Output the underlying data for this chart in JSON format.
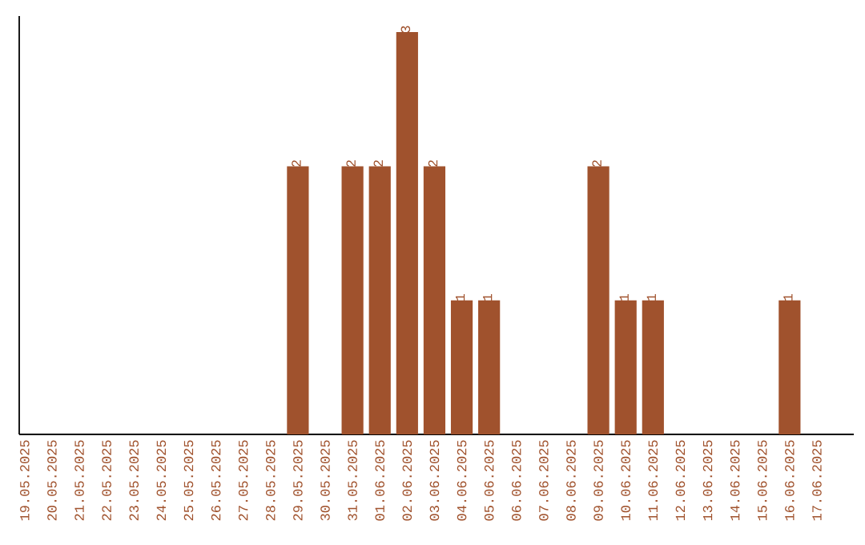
{
  "chart_data": {
    "type": "bar",
    "categories": [
      "19.05.2025",
      "20.05.2025",
      "21.05.2025",
      "22.05.2025",
      "23.05.2025",
      "24.05.2025",
      "25.05.2025",
      "26.05.2025",
      "27.05.2025",
      "28.05.2025",
      "29.05.2025",
      "30.05.2025",
      "31.05.2025",
      "01.06.2025",
      "02.06.2025",
      "03.06.2025",
      "04.06.2025",
      "05.06.2025",
      "06.06.2025",
      "07.06.2025",
      "08.06.2025",
      "09.06.2025",
      "10.06.2025",
      "11.06.2025",
      "12.06.2025",
      "13.06.2025",
      "14.06.2025",
      "15.06.2025",
      "16.06.2025",
      "17.06.2025"
    ],
    "values": [
      0,
      0,
      0,
      0,
      0,
      0,
      0,
      0,
      0,
      0,
      2,
      0,
      2,
      2,
      3,
      2,
      1,
      1,
      0,
      0,
      0,
      2,
      1,
      1,
      0,
      0,
      0,
      0,
      1,
      0
    ],
    "value_labels": [
      null,
      null,
      null,
      null,
      null,
      null,
      null,
      null,
      null,
      null,
      "2",
      null,
      "2",
      "2",
      "3",
      "2",
      "1",
      "1",
      null,
      null,
      null,
      "2",
      "1",
      "1",
      null,
      null,
      null,
      null,
      "1",
      null
    ],
    "color": "#a0522d",
    "tick_labels": "x"
  }
}
